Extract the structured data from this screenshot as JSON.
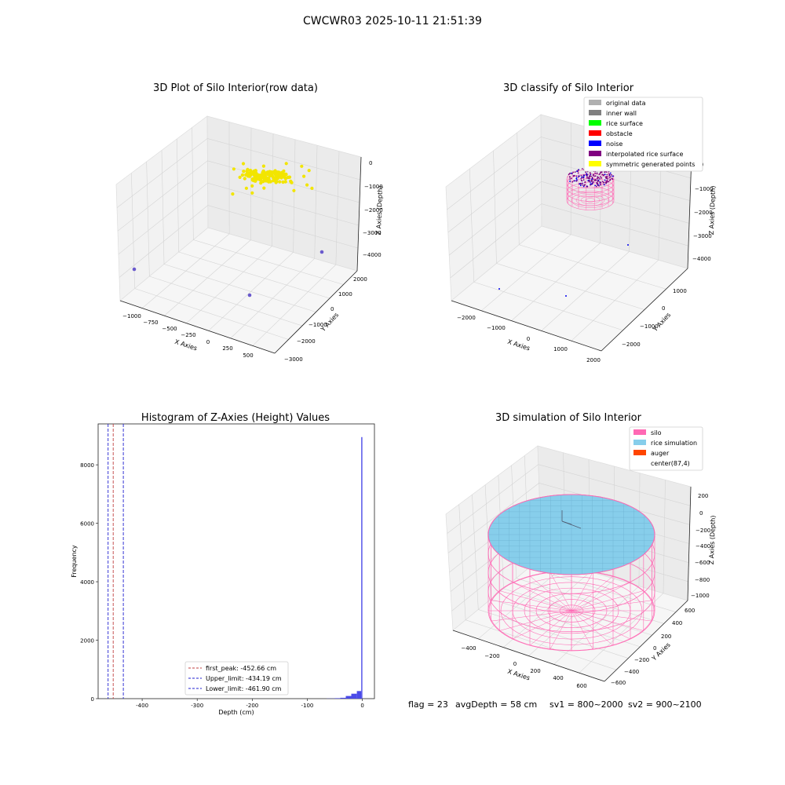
{
  "suptitle": "CWCWR03 2025-10-11 21:51:39",
  "footer": {
    "flag": "flag = 23",
    "avg": "avgDepth = 58 cm",
    "sv1": "sv1 = 800~2000",
    "sv2": "sv2 = 900~2100"
  },
  "colors": {
    "yellow": "#f2e500",
    "blue": "#0000ee",
    "purple": "#7a0080",
    "pink": "#ff69b4",
    "rice": "#87ceeb",
    "hist": "#4a4ae8"
  },
  "chart_data": [
    {
      "type": "scatter",
      "title": "3D Plot of Silo Interior(row data)",
      "xlabel": "X Axies",
      "ylabel": "Y Axies",
      "zlabel": "Z Axies (Depth)",
      "x_ticks": [
        "−1000",
        "−750",
        "−500",
        "−250",
        "0",
        "250",
        "500"
      ],
      "y_ticks": [
        "−3000",
        "−2000",
        "−1000",
        "0",
        "1000",
        "2000"
      ],
      "z_ticks": [
        "0",
        "−1000",
        "−2000",
        "−3000",
        "−4000"
      ],
      "series": [
        {
          "color": "#f2e500",
          "description_count": 140
        }
      ]
    },
    {
      "type": "scatter",
      "title": "3D classify of Silo Interior",
      "xlabel": "X Axies",
      "ylabel": "Y Axies",
      "zlabel": "Z Axies (Depth)",
      "x_ticks": [
        "−2000",
        "−1000",
        "0",
        "1000",
        "2000"
      ],
      "y_ticks": [
        "−2000",
        "−1000",
        "0",
        "1000"
      ],
      "z_ticks": [
        "0",
        "−1000",
        "−2000",
        "−3000",
        "−4000"
      ],
      "legend": [
        {
          "label": "original data",
          "color": "#b0b0b0"
        },
        {
          "label": "inner wall",
          "color": "#808080"
        },
        {
          "label": "rice surface",
          "color": "#00ff00"
        },
        {
          "label": "obstacle",
          "color": "#ff0000"
        },
        {
          "label": "noise",
          "color": "#0000ff"
        },
        {
          "label": "interpolated rice surface",
          "color": "#800080"
        },
        {
          "label": "symmetric generated points",
          "color": "#ffff00"
        }
      ],
      "legend_position": "top-right"
    },
    {
      "type": "bar",
      "title": "Histogram of Z-Axies (Height) Values",
      "xlabel": "Depth (cm)",
      "ylabel": "Frequency",
      "x_ticks": [
        -400,
        -300,
        -200,
        -100,
        0
      ],
      "y_ticks": [
        0,
        2000,
        4000,
        6000,
        8000
      ],
      "xlim": [
        -480,
        22
      ],
      "ylim": [
        0,
        9400
      ],
      "bins": [
        {
          "x0": -65,
          "x1": -50,
          "value": 5
        },
        {
          "x0": -50,
          "x1": -40,
          "value": 15
        },
        {
          "x0": -40,
          "x1": -30,
          "value": 30
        },
        {
          "x0": -30,
          "x1": -20,
          "value": 90
        },
        {
          "x0": -20,
          "x1": -10,
          "value": 170
        },
        {
          "x0": -10,
          "x1": -2,
          "value": 260
        },
        {
          "x0": -2,
          "x1": 0,
          "value": 8950
        }
      ],
      "vlines": [
        {
          "label": "first_peak: -452.66 cm",
          "x": -452.66,
          "color": "#c04040"
        },
        {
          "label": "Upper_limit: -434.19 cm",
          "x": -434.19,
          "color": "#2020d0"
        },
        {
          "label": "Lower_limit: -461.90 cm",
          "x": -461.9,
          "color": "#2020d0"
        }
      ],
      "legend_position": "lower-center"
    },
    {
      "type": "scatter",
      "title": "3D simulation of Silo Interior",
      "xlabel": "X Axies",
      "ylabel": "Y Axies",
      "zlabel": "Z Axies (Depth)",
      "x_ticks": [
        "−400",
        "−200",
        "0",
        "200",
        "400",
        "600"
      ],
      "y_ticks": [
        "−600",
        "−400",
        "−200",
        "0",
        "200",
        "400",
        "600"
      ],
      "z_ticks": [
        "200",
        "0",
        "−200",
        "−400",
        "−600",
        "−800",
        "−1000"
      ],
      "legend": [
        {
          "label": "silo",
          "color": "#ff69b4"
        },
        {
          "label": "rice simulation",
          "color": "#87ceeb"
        },
        {
          "label": "auger",
          "color": "#ff4500"
        },
        {
          "label": "center(87,4)",
          "color": ""
        }
      ],
      "legend_position": "top-right"
    }
  ]
}
